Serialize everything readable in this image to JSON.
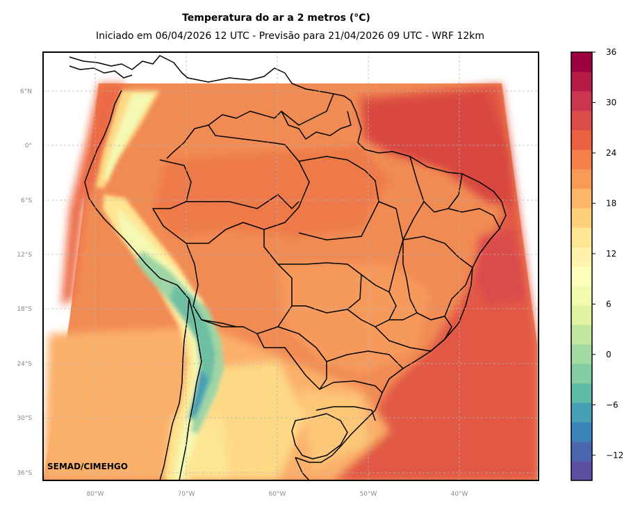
{
  "title": "Temperatura do ar a 2 metros (°C)",
  "subtitle": "Iniciado em 06/04/2026 12 UTC - Previsão para 21/04/2026 09 UTC - WRF 12km",
  "credit": "SEMAD/CIMEHGO",
  "lat_ticks": [
    "6°N",
    "0°",
    "6°S",
    "12°S",
    "18°S",
    "24°S",
    "30°S",
    "36°S"
  ],
  "lon_ticks": [
    "80°W",
    "70°W",
    "60°W",
    "50°W",
    "40°W"
  ],
  "colorbar": {
    "tick_labels": [
      "36",
      "30",
      "24",
      "18",
      "12",
      "6",
      "0",
      "−6",
      "−12"
    ],
    "min": -15,
    "max": 36,
    "step": 3,
    "colors": [
      "#5e4fa2",
      "#4a67b0",
      "#3a84bb",
      "#47a0b3",
      "#5fbaa8",
      "#84cda4",
      "#a2daa4",
      "#c2e7a0",
      "#e0f3a1",
      "#f2faaf",
      "#fefebd",
      "#fff2aa",
      "#fee593",
      "#fed07e",
      "#fdb768",
      "#fa9a58",
      "#f57e4a",
      "#e9613f",
      "#dc4c4b",
      "#cc3650",
      "#b71c48",
      "#9e0142"
    ]
  },
  "map_legend": {
    "warm_ocean": "#e25945",
    "hot_coast": "#d8473f",
    "land_base": "#f18b54",
    "land_warm": "#ee7a4a",
    "mild_south": "#fbb06a",
    "cool_south": "#fed985",
    "highland_cool": "#f4f8b2",
    "altiplano": "#9fd5a6",
    "andes_cold": "#6cbfa3"
  }
}
